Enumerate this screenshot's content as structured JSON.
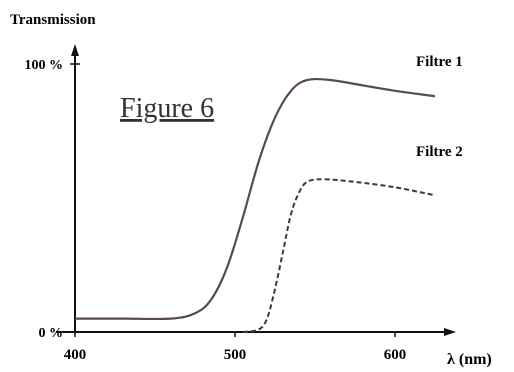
{
  "chart_data": {
    "type": "line",
    "title": "Figure 6",
    "ylabel": "Transmission",
    "xlabel": "λ (nm)",
    "xlim": [
      400,
      630
    ],
    "ylim": [
      0,
      100
    ],
    "x_ticks": [
      400,
      500,
      600
    ],
    "y_ticks": [
      {
        "value": 0,
        "label": "0 %"
      },
      {
        "value": 100,
        "label": "100 %"
      }
    ],
    "grid": false,
    "series": [
      {
        "name": "Filtre 1",
        "style": "solid",
        "points": [
          [
            400,
            5
          ],
          [
            430,
            5
          ],
          [
            460,
            5
          ],
          [
            475,
            7
          ],
          [
            485,
            12
          ],
          [
            495,
            24
          ],
          [
            505,
            43
          ],
          [
            515,
            64
          ],
          [
            525,
            80
          ],
          [
            535,
            90
          ],
          [
            545,
            94
          ],
          [
            560,
            94
          ],
          [
            580,
            92
          ],
          [
            600,
            90
          ],
          [
            625,
            88
          ]
        ]
      },
      {
        "name": "Filtre 2",
        "style": "dashed",
        "points": [
          [
            505,
            0
          ],
          [
            515,
            1
          ],
          [
            520,
            5
          ],
          [
            525,
            16
          ],
          [
            530,
            30
          ],
          [
            535,
            44
          ],
          [
            540,
            52
          ],
          [
            545,
            56
          ],
          [
            555,
            57
          ],
          [
            575,
            56
          ],
          [
            600,
            54
          ],
          [
            625,
            51
          ]
        ]
      }
    ]
  }
}
